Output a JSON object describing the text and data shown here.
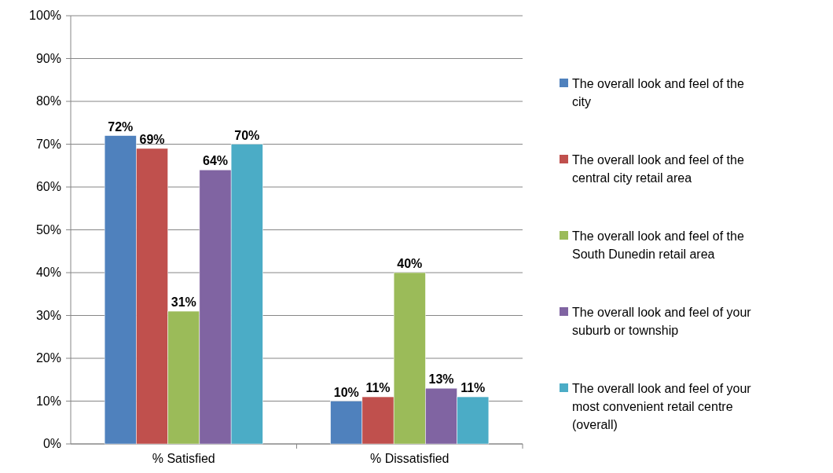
{
  "chart_data": {
    "type": "bar",
    "categories": [
      "% Satisfied",
      "% Dissatisfied"
    ],
    "series": [
      {
        "name": "The overall look and feel of the city",
        "color": "#4f81bd",
        "values": [
          72,
          10
        ],
        "value_labels": [
          "72%",
          "10%"
        ]
      },
      {
        "name": "The overall look and feel of the central city retail area",
        "color": "#c0504d",
        "values": [
          69,
          11
        ],
        "value_labels": [
          "69%",
          "11%"
        ]
      },
      {
        "name": "The overall look and feel of the South Dunedin retail area",
        "color": "#9bbb59",
        "values": [
          31,
          40
        ],
        "value_labels": [
          "31%",
          "40%"
        ]
      },
      {
        "name": "The overall look and feel of your suburb or township",
        "color": "#8064a2",
        "values": [
          64,
          13
        ],
        "value_labels": [
          "64%",
          "13%"
        ]
      },
      {
        "name": "The overall look and feel of your most convenient retail centre (overall)",
        "color": "#4bacc6",
        "values": [
          70,
          11
        ],
        "value_labels": [
          "70%",
          "11%"
        ]
      }
    ],
    "ylim": [
      0,
      100
    ],
    "yticks": [
      {
        "value": 0,
        "label": "0%"
      },
      {
        "value": 10,
        "label": "10%"
      },
      {
        "value": 20,
        "label": "20%"
      },
      {
        "value": 30,
        "label": "30%"
      },
      {
        "value": 40,
        "label": "40%"
      },
      {
        "value": 50,
        "label": "50%"
      },
      {
        "value": 60,
        "label": "60%"
      },
      {
        "value": 70,
        "label": "70%"
      },
      {
        "value": 80,
        "label": "80%"
      },
      {
        "value": 90,
        "label": "90%"
      },
      {
        "value": 100,
        "label": "100%"
      }
    ],
    "grid": "y",
    "legend": "right"
  }
}
